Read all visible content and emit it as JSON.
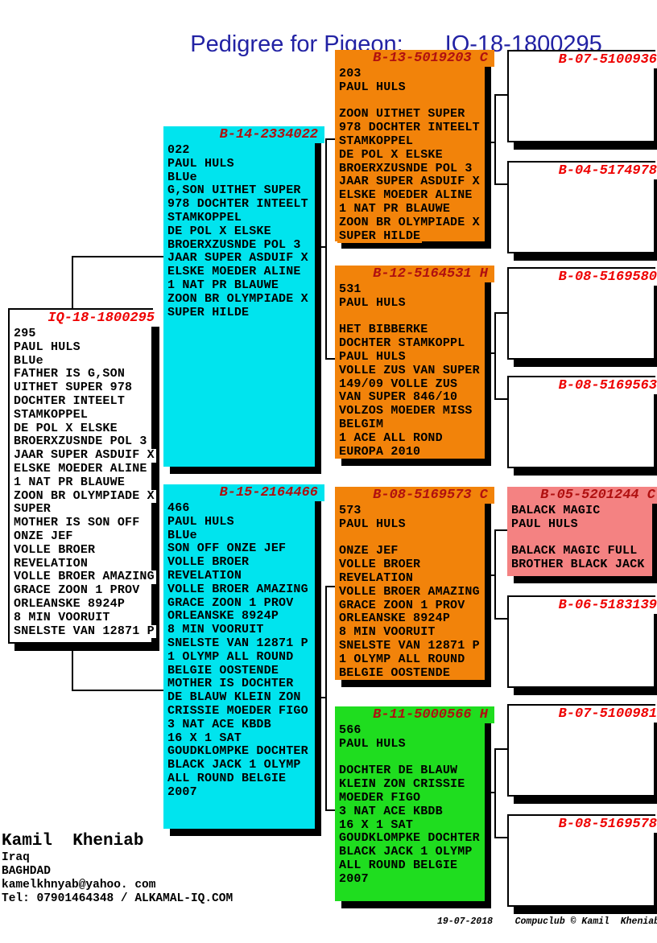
{
  "page": {
    "title_label": "Pedigree for Pigeon:",
    "title_value": "IQ-18-1800295"
  },
  "colors": {
    "cyan": "#00E4EE",
    "orange": "#F2830A",
    "green": "#1FDD1F",
    "pink": "#F48282",
    "white": "#FFFFFF",
    "title_bright_red": "#EE0000",
    "title_dark_red": "#B01010",
    "heading_blue": "#2222A4"
  },
  "boxes": {
    "subject": {
      "id": "IQ-18-1800295",
      "color": "white",
      "title_color": "title_bright_red",
      "lines": [
        "295",
        "PAUL HULS",
        "BLUe",
        "FATHER IS G,SON",
        "UITHET SUPER 978",
        "DOCHTER INTEELT",
        "STAMKOPPEL",
        "DE POL X ELSKE",
        "BROERXZUSNDE POL 3",
        "JAAR SUPER ASDUIF X",
        "ELSKE MOEDER ALINE",
        "1 NAT PR BLAUWE",
        "ZOON BR OLYMPIADE X",
        "SUPER",
        "MOTHER IS SON OFF",
        "ONZE JEF",
        "VOLLE BROER",
        "REVELATION",
        "VOLLE BROER AMAZING",
        "GRACE ZOON 1 PROV",
        "ORLEANSKE 8924P",
        "8 MIN VOORUIT",
        "SNELSTE VAN 12871 P"
      ]
    },
    "b14": {
      "id": "B-14-2334022",
      "color": "cyan",
      "title_color": "title_dark_red",
      "lines": [
        "022",
        "PAUL HULS",
        "BLUe",
        "G,SON UITHET SUPER",
        "978 DOCHTER INTEELT",
        "STAMKOPPEL",
        "DE POL X ELSKE",
        "BROERXZUSNDE POL 3",
        "JAAR SUPER ASDUIF X",
        "ELSKE MOEDER ALINE",
        "1 NAT PR BLAUWE",
        "ZOON BR OLYMPIADE X",
        "SUPER HILDE"
      ]
    },
    "b15": {
      "id": "B-15-2164466",
      "color": "cyan",
      "title_color": "title_dark_red",
      "lines": [
        "466",
        "PAUL HULS",
        "BLUe",
        "SON OFF ONZE JEF",
        "VOLLE BROER",
        "REVELATION",
        "VOLLE BROER AMAZING",
        "GRACE ZOON 1 PROV",
        "ORLEANSKE 8924P",
        "8 MIN VOORUIT",
        "SNELSTE VAN 12871 P",
        "1 OLYMP ALL ROUND",
        "BELGIE OOSTENDE",
        "MOTHER IS DOCHTER",
        "DE BLAUW KLEIN ZON",
        "CRISSIE MOEDER FIGO",
        "3 NAT ACE KBDB",
        "16 X 1 SAT",
        "GOUDKLOMPKE DOCHTER",
        "BLACK JACK 1 OLYMP",
        "ALL ROUND BELGIE",
        "2007"
      ]
    },
    "b13": {
      "id": "B-13-5019203 C",
      "color": "orange",
      "title_color": "title_dark_red",
      "lines": [
        "203",
        "PAUL HULS",
        "",
        "ZOON UITHET SUPER",
        "978 DOCHTER INTEELT",
        "STAMKOPPEL",
        "DE POL X ELSKE",
        "BROERXZUSNDE POL 3",
        "JAAR SUPER ASDUIF X",
        "ELSKE MOEDER ALINE",
        "1 NAT PR BLAUWE",
        "ZOON BR OLYMPIADE X",
        "SUPER HILDE"
      ]
    },
    "b12": {
      "id": "B-12-5164531 H",
      "color": "orange",
      "title_color": "title_dark_red",
      "lines": [
        "531",
        "PAUL HULS",
        "",
        "HET BIBBERKE",
        "DOCHTER STAMKOPPL",
        "PAUL HULS",
        "VOLLE ZUS VAN SUPER",
        "149/09 VOLLE ZUS",
        "VAN SUPER 846/10",
        "VOLZOS MOEDER MISS",
        "BELGIM",
        "1 ACE ALL ROND",
        "EUROPA 2010"
      ]
    },
    "b08a": {
      "id": "B-08-5169573 C",
      "color": "orange",
      "title_color": "title_dark_red",
      "lines": [
        "573",
        "PAUL HULS",
        "",
        "ONZE JEF",
        "VOLLE BROER",
        "REVELATION",
        "VOLLE BROER AMAZING",
        "GRACE ZOON 1 PROV",
        "ORLEANSKE 8924P",
        "8 MIN VOORUIT",
        "SNELSTE VAN 12871 P",
        "1 OLYMP ALL ROUND",
        "BELGIE OOSTENDE"
      ]
    },
    "b11": {
      "id": "B-11-5000566 H",
      "color": "green",
      "title_color": "title_dark_red",
      "lines": [
        "566",
        "PAUL HULS",
        "",
        "DOCHTER DE BLAUW",
        "KLEIN ZON CRISSIE",
        "MOEDER FIGO",
        "3 NAT ACE KBDB",
        "16 X 1 SAT",
        "GOUDKLOMPKE DOCHTER",
        "BLACK JACK 1 OLYMP",
        "ALL ROUND BELGIE",
        "2007"
      ]
    },
    "w1": {
      "id": "B-07-5100936",
      "color": "white",
      "title_color": "title_bright_red",
      "lines": []
    },
    "w2": {
      "id": "B-04-5174978",
      "color": "white",
      "title_color": "title_bright_red",
      "lines": []
    },
    "w3": {
      "id": "B-08-5169580",
      "color": "white",
      "title_color": "title_bright_red",
      "lines": []
    },
    "w4": {
      "id": "B-08-5169563",
      "color": "white",
      "title_color": "title_bright_red",
      "lines": []
    },
    "w5": {
      "id": "B-05-5201244 C",
      "color": "pink",
      "title_color": "title_dark_red",
      "lines": [
        "BALACK MAGIC",
        "PAUL HULS",
        "",
        "BALACK MAGIC FULL",
        "BROTHER BLACK JACK"
      ]
    },
    "w6": {
      "id": "B-06-5183139",
      "color": "white",
      "title_color": "title_bright_red",
      "lines": []
    },
    "w7": {
      "id": "B-07-5100981",
      "color": "white",
      "title_color": "title_bright_red",
      "lines": []
    },
    "w8": {
      "id": "B-08-5169578",
      "color": "white",
      "title_color": "title_bright_red",
      "lines": []
    }
  },
  "footer": {
    "owner": "Kamil  Kheniab",
    "country": "Iraq",
    "city": "BAGHDAD",
    "email": "kamelkhnyab@yahoo. com",
    "tel": "Tel: 07901464348 / ALKAMAL-IQ.COM",
    "bottom_right": "19-07-2018    Compuclub © Kamil  Kheniab"
  }
}
